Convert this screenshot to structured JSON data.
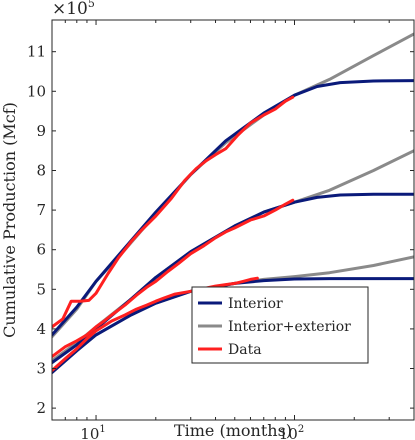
{
  "chart_data": {
    "type": "line",
    "xscale": "log",
    "xlim": [
      6,
      400
    ],
    "ylim": [
      1.7,
      11.8
    ],
    "y_multiplier": "×10",
    "y_multiplier_exp": "5",
    "xlabel": "Time (months)",
    "ylabel": "Cumulative Production (Mcf)",
    "xticks": [
      {
        "value": 10,
        "base": "10",
        "exp": "1"
      },
      {
        "value": 100,
        "base": "10",
        "exp": "2"
      }
    ],
    "yticks": [
      {
        "value": 2,
        "label": "2"
      },
      {
        "value": 3,
        "label": "3"
      },
      {
        "value": 4,
        "label": "4"
      },
      {
        "value": 5,
        "label": "5"
      },
      {
        "value": 6,
        "label": "6"
      },
      {
        "value": 7,
        "label": "7"
      },
      {
        "value": 8,
        "label": "8"
      },
      {
        "value": 9,
        "label": "9"
      },
      {
        "value": 10,
        "label": "10"
      },
      {
        "value": 11,
        "label": "11"
      }
    ],
    "legend": {
      "placement": "lower-right",
      "entries": [
        {
          "label": "Interior",
          "color": "#0a1a7a"
        },
        {
          "label": "Interior+exterior",
          "color": "#8a8a8a"
        },
        {
          "label": "Data",
          "color": "#ff2020"
        }
      ]
    },
    "series": [
      {
        "legend": "Interior+exterior",
        "color": "#8a8a8a",
        "width": 3,
        "points": [
          [
            6,
            3.8
          ],
          [
            8,
            4.5
          ],
          [
            10,
            5.2
          ],
          [
            14,
            6.0
          ],
          [
            20,
            6.9
          ],
          [
            30,
            7.9
          ],
          [
            45,
            8.7
          ],
          [
            70,
            9.4
          ],
          [
            100,
            9.9
          ],
          [
            150,
            10.3
          ],
          [
            250,
            10.9
          ],
          [
            400,
            11.45
          ]
        ]
      },
      {
        "legend": "Interior",
        "color": "#0a1a7a",
        "width": 3,
        "points": [
          [
            6,
            3.85
          ],
          [
            8,
            4.55
          ],
          [
            10,
            5.2
          ],
          [
            14,
            6.05
          ],
          [
            20,
            6.95
          ],
          [
            30,
            7.9
          ],
          [
            45,
            8.75
          ],
          [
            70,
            9.45
          ],
          [
            100,
            9.9
          ],
          [
            130,
            10.12
          ],
          [
            170,
            10.22
          ],
          [
            250,
            10.26
          ],
          [
            400,
            10.27
          ]
        ]
      },
      {
        "legend": "Data",
        "color": "#ff2020",
        "width": 3,
        "points": [
          [
            6,
            4.05
          ],
          [
            6.8,
            4.25
          ],
          [
            7.5,
            4.7
          ],
          [
            8.3,
            4.7
          ],
          [
            9.2,
            4.72
          ],
          [
            10,
            4.9
          ],
          [
            11.5,
            5.4
          ],
          [
            13,
            5.8
          ],
          [
            15,
            6.2
          ],
          [
            17,
            6.5
          ],
          [
            20,
            6.85
          ],
          [
            24,
            7.3
          ],
          [
            28,
            7.75
          ],
          [
            32,
            8.05
          ],
          [
            36,
            8.25
          ],
          [
            40,
            8.4
          ],
          [
            45,
            8.55
          ],
          [
            52,
            8.9
          ],
          [
            60,
            9.2
          ],
          [
            70,
            9.4
          ],
          [
            80,
            9.55
          ],
          [
            90,
            9.75
          ],
          [
            98,
            9.85
          ]
        ]
      },
      {
        "legend": "Interior+exterior",
        "color": "#8a8a8a",
        "width": 3,
        "points": [
          [
            6,
            3.2
          ],
          [
            8,
            3.65
          ],
          [
            10,
            4.05
          ],
          [
            15,
            4.75
          ],
          [
            20,
            5.3
          ],
          [
            30,
            5.95
          ],
          [
            50,
            6.6
          ],
          [
            70,
            6.95
          ],
          [
            100,
            7.2
          ],
          [
            150,
            7.5
          ],
          [
            250,
            8.0
          ],
          [
            400,
            8.5
          ]
        ]
      },
      {
        "legend": "Interior",
        "color": "#0a1a7a",
        "width": 3,
        "points": [
          [
            6,
            3.15
          ],
          [
            8,
            3.6
          ],
          [
            10,
            4.0
          ],
          [
            15,
            4.75
          ],
          [
            20,
            5.3
          ],
          [
            30,
            5.95
          ],
          [
            50,
            6.6
          ],
          [
            70,
            6.95
          ],
          [
            100,
            7.2
          ],
          [
            130,
            7.32
          ],
          [
            170,
            7.38
          ],
          [
            250,
            7.4
          ],
          [
            400,
            7.4
          ]
        ]
      },
      {
        "legend": "Data",
        "color": "#ff2020",
        "width": 3,
        "points": [
          [
            6,
            3.3
          ],
          [
            7,
            3.55
          ],
          [
            8,
            3.7
          ],
          [
            9,
            3.85
          ],
          [
            10,
            4.05
          ],
          [
            11,
            4.2
          ],
          [
            12,
            4.35
          ],
          [
            14,
            4.6
          ],
          [
            16,
            4.85
          ],
          [
            18,
            5.05
          ],
          [
            20,
            5.2
          ],
          [
            23,
            5.45
          ],
          [
            26,
            5.65
          ],
          [
            30,
            5.9
          ],
          [
            35,
            6.1
          ],
          [
            40,
            6.3
          ],
          [
            45,
            6.45
          ],
          [
            50,
            6.55
          ],
          [
            60,
            6.75
          ],
          [
            70,
            6.85
          ],
          [
            80,
            7.0
          ],
          [
            90,
            7.15
          ],
          [
            98,
            7.25
          ]
        ]
      },
      {
        "legend": "Interior+exterior",
        "color": "#8a8a8a",
        "width": 3,
        "points": [
          [
            6,
            2.9
          ],
          [
            8,
            3.45
          ],
          [
            10,
            3.85
          ],
          [
            15,
            4.35
          ],
          [
            20,
            4.65
          ],
          [
            30,
            4.95
          ],
          [
            50,
            5.15
          ],
          [
            70,
            5.25
          ],
          [
            100,
            5.32
          ],
          [
            150,
            5.42
          ],
          [
            250,
            5.6
          ],
          [
            400,
            5.82
          ]
        ]
      },
      {
        "legend": "Interior",
        "color": "#0a1a7a",
        "width": 3,
        "points": [
          [
            6,
            2.9
          ],
          [
            8,
            3.45
          ],
          [
            10,
            3.85
          ],
          [
            15,
            4.35
          ],
          [
            20,
            4.65
          ],
          [
            30,
            4.95
          ],
          [
            50,
            5.15
          ],
          [
            70,
            5.22
          ],
          [
            100,
            5.26
          ],
          [
            150,
            5.27
          ],
          [
            250,
            5.27
          ],
          [
            400,
            5.27
          ]
        ]
      },
      {
        "legend": "Data",
        "color": "#ff2020",
        "width": 3,
        "points": [
          [
            6,
            2.95
          ],
          [
            7,
            3.25
          ],
          [
            8,
            3.5
          ],
          [
            9,
            3.75
          ],
          [
            10,
            3.95
          ],
          [
            12,
            4.2
          ],
          [
            14,
            4.35
          ],
          [
            16,
            4.5
          ],
          [
            18,
            4.6
          ],
          [
            20,
            4.7
          ],
          [
            22,
            4.78
          ],
          [
            25,
            4.88
          ],
          [
            30,
            4.95
          ],
          [
            35,
            5.02
          ],
          [
            40,
            5.08
          ],
          [
            45,
            5.12
          ],
          [
            50,
            5.15
          ],
          [
            55,
            5.2
          ],
          [
            60,
            5.25
          ],
          [
            65,
            5.28
          ]
        ]
      }
    ]
  }
}
